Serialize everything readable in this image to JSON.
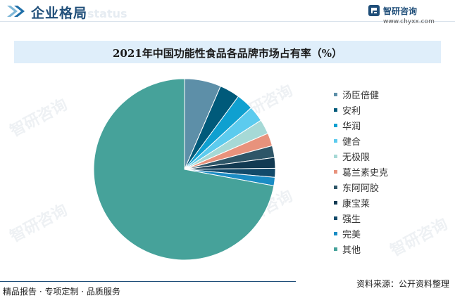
{
  "header": {
    "title": "企业格局",
    "watermark": "status"
  },
  "brand": {
    "name": "智研咨询",
    "url": "www.chyxx.com",
    "logo_color": "#1f4e79"
  },
  "watermark_text": "智研咨询",
  "chart_data": {
    "type": "pie",
    "title": "2021年中国功能性食品各品牌市场占有率（%）",
    "categories": [
      "汤臣倍健",
      "安利",
      "华润",
      "健合",
      "无极限",
      "葛兰素史克",
      "东阿阿胶",
      "康宝莱",
      "强生",
      "完美",
      "其他"
    ],
    "values": [
      6.5,
      3.6,
      3.0,
      2.8,
      2.6,
      2.3,
      2.1,
      1.9,
      1.6,
      1.5,
      72.1
    ],
    "colors": [
      "#5d8fa8",
      "#005a7a",
      "#0fa0d0",
      "#5ccbee",
      "#a6d9d6",
      "#e8927c",
      "#2e5668",
      "#123a52",
      "#124a6a",
      "#1a8cc4",
      "#46a29a"
    ],
    "legend_position": "right",
    "start_angle_deg": 0,
    "direction": "clockwise"
  },
  "footer": {
    "left": "精品报告 · 专项定制 · 品质服务",
    "source": "资料来源：公开资料整理"
  }
}
